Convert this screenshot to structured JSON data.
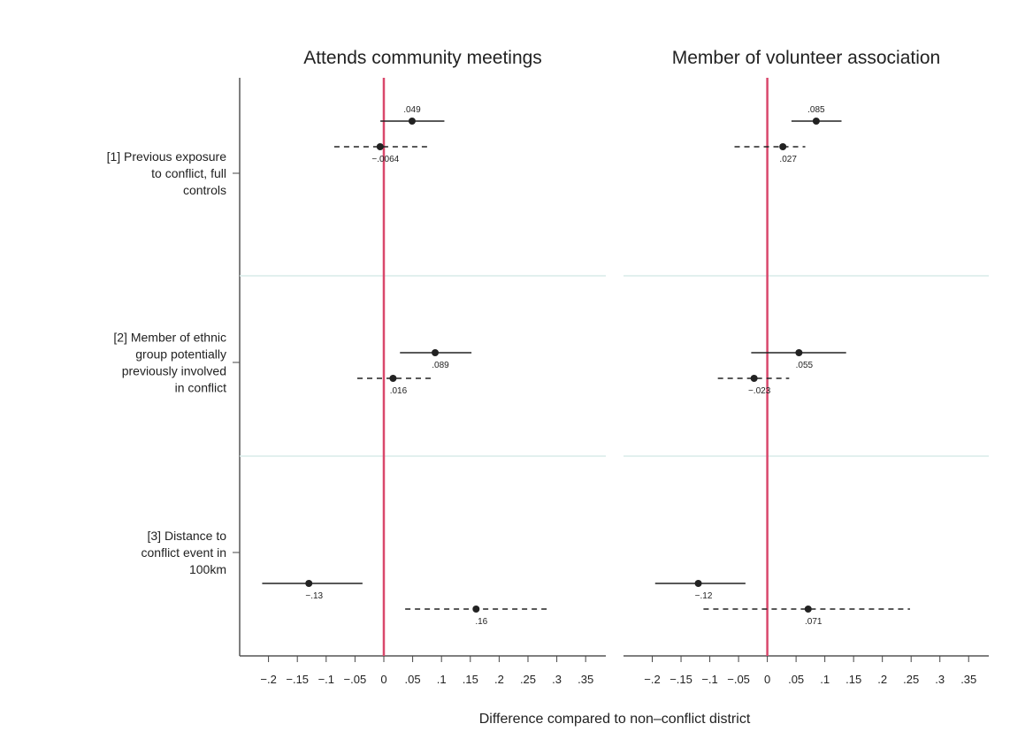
{
  "chart_data": {
    "type": "coefplot",
    "xlabel": "Difference compared to non–conflict district",
    "categories": [
      [
        "[1] Previous exposure",
        "to conflict, full",
        "controls"
      ],
      [
        "[2] Member of ethnic",
        "group potentially",
        "previously involved",
        "in conflict"
      ],
      [
        "[3] Distance to",
        "conflict event in",
        "100km"
      ]
    ],
    "xlim": [
      -0.25,
      0.385
    ],
    "xticks": [
      {
        "value": -0.2,
        "label": "−.2"
      },
      {
        "value": -0.15,
        "label": "−.15"
      },
      {
        "value": -0.1,
        "label": "−.1"
      },
      {
        "value": -0.05,
        "label": "−.05"
      },
      0,
      {
        "value": 0.05,
        "label": ".05"
      },
      {
        "value": 0.1,
        "label": ".1"
      },
      {
        "value": 0.15,
        "label": ".15"
      },
      {
        "value": 0.2,
        "label": ".2"
      },
      {
        "value": 0.25,
        "label": ".25"
      },
      {
        "value": 0.3,
        "label": ".3"
      },
      {
        "value": 0.35,
        "label": ".35"
      }
    ],
    "reference_line": 0,
    "reference_color": "#d9476b",
    "separator_color": "#d8ebe8",
    "panels": [
      {
        "title": "Attends community meetings",
        "series": [
          {
            "style": "solid",
            "color": "#222222",
            "values": [
              0.049,
              0.089,
              -0.13
            ],
            "value_labels": [
              ".049",
              ".089",
              "−.13"
            ],
            "lower": [
              -0.006,
              0.028,
              -0.211
            ],
            "upper": [
              0.105,
              0.152,
              -0.037
            ]
          },
          {
            "style": "dashed",
            "color": "#222222",
            "values": [
              -0.0064,
              0.016,
              0.16
            ],
            "value_labels": [
              "−.0064",
              ".016",
              ".16"
            ],
            "lower": [
              -0.086,
              -0.046,
              0.037
            ],
            "upper": [
              0.075,
              0.082,
              0.288
            ]
          }
        ]
      },
      {
        "title": "Member of volunteer association",
        "series": [
          {
            "style": "solid",
            "color": "#222222",
            "values": [
              0.085,
              0.055,
              -0.12
            ],
            "value_labels": [
              ".085",
              ".055",
              "−.12"
            ],
            "lower": [
              0.042,
              -0.028,
              -0.195
            ],
            "upper": [
              0.129,
              0.137,
              -0.038
            ]
          },
          {
            "style": "dashed",
            "color": "#222222",
            "values": [
              0.027,
              -0.023,
              0.071
            ],
            "value_labels": [
              ".027",
              "−.023",
              ".071"
            ],
            "lower": [
              -0.057,
              -0.086,
              -0.111
            ],
            "upper": [
              0.066,
              0.038,
              0.248
            ]
          }
        ]
      }
    ]
  }
}
